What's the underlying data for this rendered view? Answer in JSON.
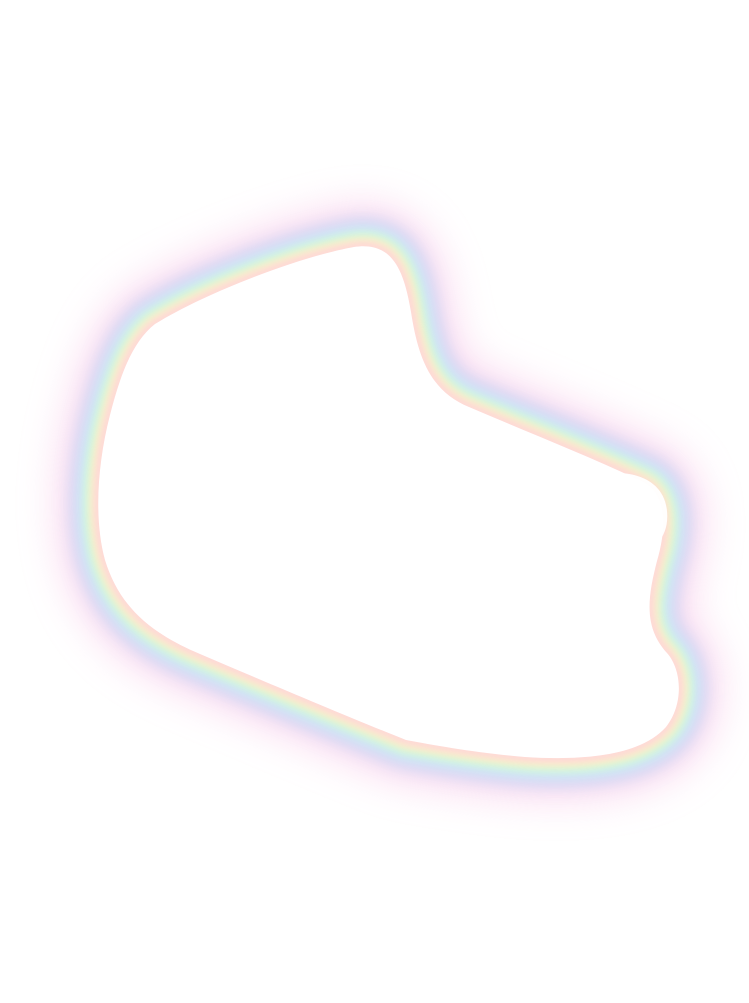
{
  "image": {
    "background": "#ffffff",
    "fill": "#ffffff",
    "glow_colors": [
      "#f8c8e8",
      "#c9c3ee",
      "#c8f1fb",
      "#d2f7d8",
      "#fff6c2",
      "#ffd1dc"
    ]
  }
}
